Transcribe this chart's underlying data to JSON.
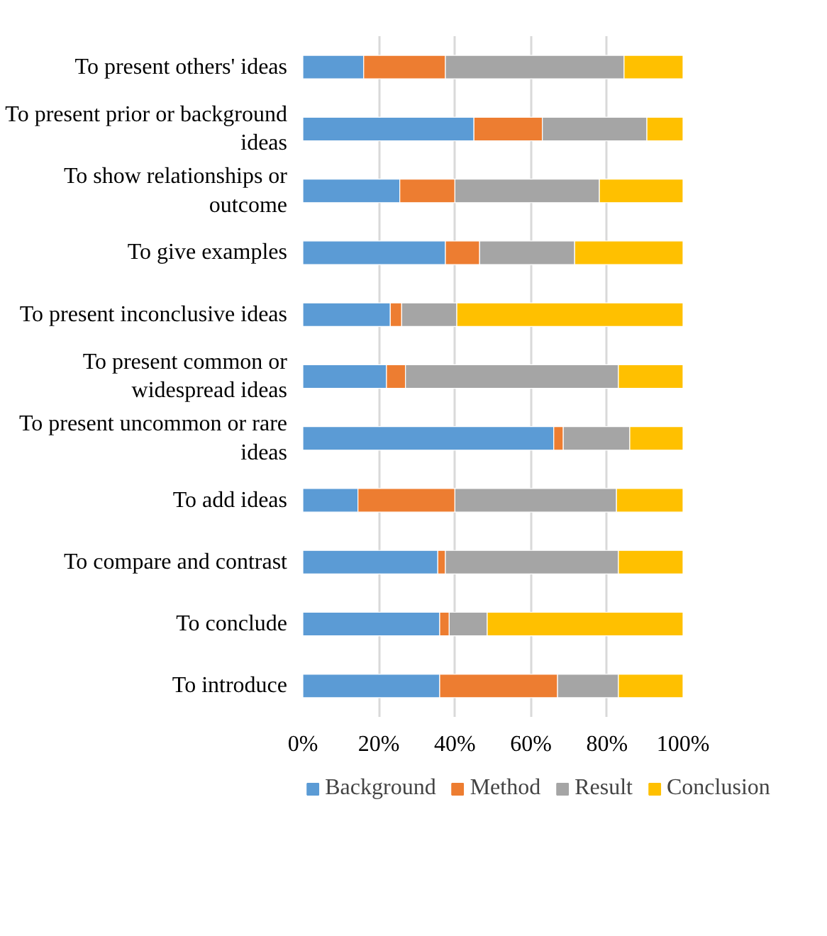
{
  "chart_data": {
    "type": "bar",
    "orientation": "horizontal",
    "stacked": true,
    "categories": [
      "To present others' ideas",
      "To present prior or background\nideas",
      "To show relationships or\noutcome",
      "To give examples",
      "To present inconclusive ideas",
      "To present common or\nwidespread ideas",
      "To present uncommon or rare\nideas",
      "To add ideas",
      "To compare and contrast",
      "To conclude",
      "To introduce"
    ],
    "series": [
      {
        "name": "Background",
        "color": "#5b9bd5",
        "values": [
          16,
          45,
          25.5,
          37.5,
          23,
          22,
          66,
          14.5,
          35.5,
          36,
          36
        ]
      },
      {
        "name": "Method",
        "color": "#ed7d31",
        "values": [
          21.5,
          18,
          14.5,
          9,
          3,
          5,
          2.5,
          25.5,
          2,
          2.5,
          31
        ]
      },
      {
        "name": "Result",
        "color": "#a5a5a5",
        "values": [
          47,
          27.5,
          38,
          25,
          14.5,
          56,
          17.5,
          42.5,
          45.5,
          10,
          16
        ]
      },
      {
        "name": "Conclusion",
        "color": "#ffc000",
        "values": [
          15.5,
          9.5,
          22,
          28.5,
          59.5,
          17,
          14,
          17.5,
          17,
          51.5,
          17
        ]
      }
    ],
    "xlim": [
      0,
      100
    ],
    "xticks": [
      {
        "value": 0,
        "label": "0%"
      },
      {
        "value": 20,
        "label": "20%"
      },
      {
        "value": 40,
        "label": "40%"
      },
      {
        "value": 60,
        "label": "60%"
      },
      {
        "value": 80,
        "label": "80%"
      },
      {
        "value": 100,
        "label": "100%"
      }
    ],
    "grid": "x",
    "legend": "bottom"
  }
}
